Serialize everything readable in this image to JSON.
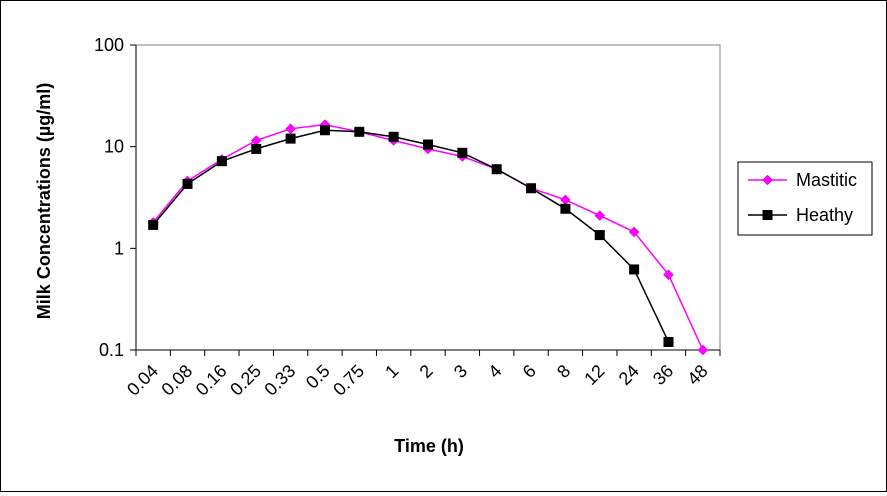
{
  "chart_data": {
    "type": "line",
    "xlabel": "Time (h)",
    "ylabel": "Milk Concentrations (µg/ml)",
    "y_scale": "log",
    "ylim": [
      0.1,
      100
    ],
    "y_ticks": [
      "0.1",
      "1",
      "10",
      "100"
    ],
    "categories": [
      "0.04",
      "0.08",
      "0.16",
      "0.25",
      "0.33",
      "0.5",
      "0.75",
      "1",
      "2",
      "3",
      "4",
      "6",
      "8",
      "12",
      "24",
      "36",
      "48"
    ],
    "grid": false,
    "legend_position": "right",
    "series": [
      {
        "name": "Mastitic",
        "color": "#ff00ff",
        "marker": "diamond",
        "values": [
          1.8,
          4.6,
          7.5,
          11.5,
          15,
          16.5,
          14,
          11.5,
          9.5,
          8,
          6,
          3.9,
          3.0,
          2.1,
          1.45,
          0.55,
          0.1
        ]
      },
      {
        "name": "Heathy",
        "color": "#000000",
        "marker": "square",
        "values": [
          1.7,
          4.3,
          7.2,
          9.5,
          12,
          14.5,
          14,
          12.5,
          10.5,
          8.7,
          6.0,
          3.9,
          2.45,
          1.35,
          0.62,
          0.12,
          null
        ]
      }
    ]
  }
}
